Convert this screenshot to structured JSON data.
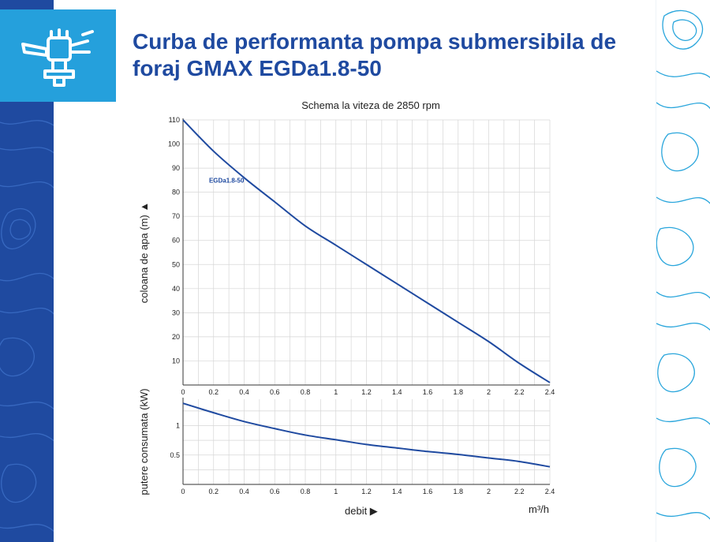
{
  "page": {
    "title": "Curba de performanta pompa submersibila de foraj GMAX EGDa1.8-50",
    "subtitle": "Schema la viteza de 2850 rpm",
    "accent": "#1f4aa0",
    "logo_bg": "#25a0dc",
    "logo_icon": "sprinkler-icon"
  },
  "chart_data": [
    {
      "type": "line",
      "title": "Schema la viteza de 2850 rpm",
      "ylabel": "coloana de apa (m) ▲",
      "xlabel": "",
      "x_ticks": [
        "0",
        "0.2",
        "0.4",
        "0.6",
        "0.8",
        "1",
        "1.2",
        "1.4",
        "1.6",
        "1.8",
        "2",
        "2.2",
        "2.4"
      ],
      "y_ticks": [
        "10",
        "20",
        "30",
        "40",
        "50",
        "60",
        "70",
        "80",
        "90",
        "100",
        "110"
      ],
      "xlim": [
        0,
        2.4
      ],
      "ylim": [
        0,
        110
      ],
      "grid": true,
      "series": [
        {
          "name": "EGDa1.8-50",
          "color": "#1f4aa0",
          "x": [
            0,
            0.2,
            0.4,
            0.6,
            0.8,
            1.0,
            1.2,
            1.4,
            1.6,
            1.8,
            2.0,
            2.2,
            2.4
          ],
          "y": [
            110,
            97,
            86,
            76,
            66,
            58,
            50,
            42,
            34,
            26,
            18,
            9,
            1
          ]
        }
      ]
    },
    {
      "type": "line",
      "ylabel": "putere consumata (kW)",
      "xlabel": "debit ▶",
      "x_unit": "m³/h",
      "x_ticks": [
        "0",
        "0.2",
        "0.4",
        "0.6",
        "0.8",
        "1",
        "1.2",
        "1.4",
        "1.6",
        "1.8",
        "2",
        "2.2",
        "2.4"
      ],
      "y_ticks": [
        "0.5",
        "1"
      ],
      "xlim": [
        0,
        2.4
      ],
      "ylim": [
        0,
        1.45
      ],
      "grid": true,
      "series": [
        {
          "color": "#1f4aa0",
          "x": [
            0,
            0.2,
            0.4,
            0.6,
            0.8,
            1.0,
            1.2,
            1.4,
            1.6,
            1.8,
            2.0,
            2.2,
            2.4
          ],
          "y": [
            1.38,
            1.22,
            1.07,
            0.95,
            0.84,
            0.76,
            0.68,
            0.62,
            0.56,
            0.51,
            0.45,
            0.39,
            0.3
          ]
        }
      ]
    }
  ]
}
